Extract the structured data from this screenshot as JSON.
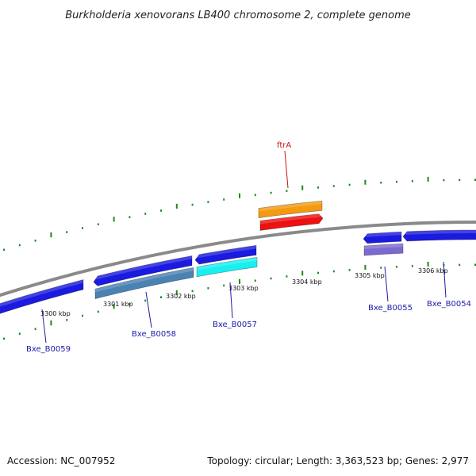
{
  "title": "Burkholderia xenovorans LB400 chromosome 2, complete genome",
  "footer": {
    "accession": "Accession: NC_007952",
    "summary": "Topology: circular; Length: 3,363,523 bp; Genes: 2,977"
  },
  "colors": {
    "backbone": "#8a8a8a",
    "tick": "#1a8a1a",
    "label_blue": "#1a1aa8",
    "label_red": "#cc1111"
  },
  "scale_labels": [
    "3300 kbp",
    "3301 kbp",
    "3302 kbp",
    "3303 kbp",
    "3304 kbp",
    "3305 kbp",
    "3306 kbp"
  ],
  "features": [
    {
      "id": "Bxe_B0059",
      "color": "#1a1ae0",
      "strand": "reverse"
    },
    {
      "id": "Bxe_B0058",
      "color": "#1a1ae0",
      "strand": "reverse"
    },
    {
      "id": "Bxe_B0057",
      "color": "#1a1ae0",
      "strand": "reverse"
    },
    {
      "id": "Bxe_B0055",
      "color": "#1a1ae0",
      "strand": "reverse"
    },
    {
      "id": "Bxe_B0054",
      "color": "#1a1ae0",
      "strand": "reverse"
    },
    {
      "id": "ftrA",
      "color": "#ee1111",
      "strand": "forward"
    }
  ],
  "tracks": [
    {
      "name": "orange-feature",
      "color": "#f39a10"
    },
    {
      "name": "steelblue-feature",
      "color": "#4a82b4"
    },
    {
      "name": "cyan-feature",
      "color": "#18f0f0"
    },
    {
      "name": "purple-feature",
      "color": "#7a6ad0"
    }
  ],
  "labels": {
    "ftrA": "ftrA",
    "Bxe_B0059": "Bxe_B0059",
    "Bxe_B0058": "Bxe_B0058",
    "Bxe_B0057": "Bxe_B0057",
    "Bxe_B0055": "Bxe_B0055",
    "Bxe_B0054": "Bxe_B0054"
  }
}
